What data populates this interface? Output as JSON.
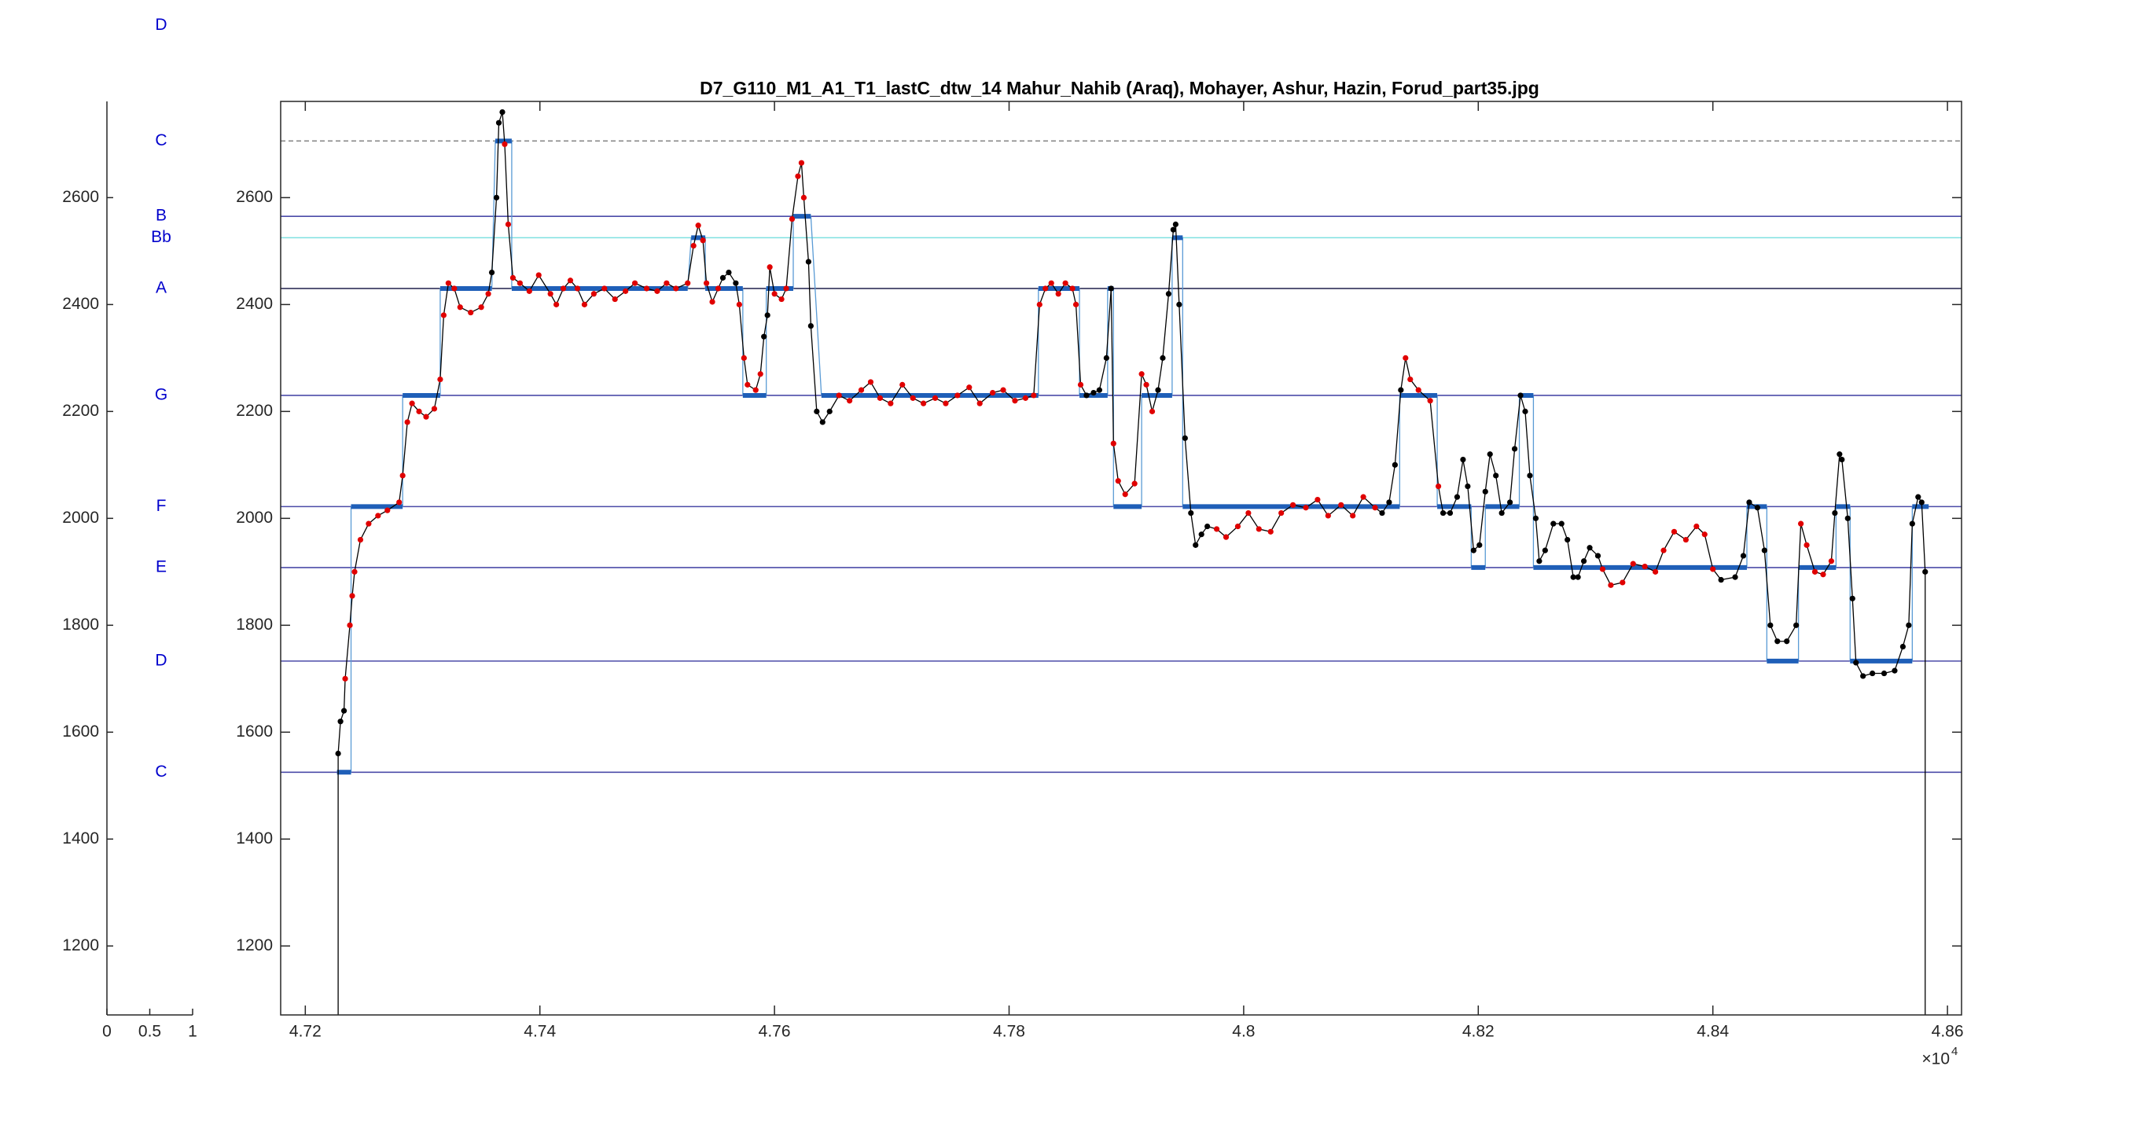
{
  "chart_data": {
    "type": "line",
    "title": "D7_G110_M1_A1_T1_lastC_dtw_14 Mahur_Nahib (Araq), Mohayer, Ashur, Hazin, Forud_part35.jpg",
    "xlim": [
      4.7179,
      4.8612
    ],
    "xticks": [
      4.72,
      4.74,
      4.76,
      4.78,
      4.8,
      4.82,
      4.84,
      4.86
    ],
    "x_exponent": {
      "base": "×10",
      "power": "4"
    },
    "ylim": [
      1071,
      2780
    ],
    "yticks": [
      1200,
      1400,
      1600,
      1800,
      2000,
      2200,
      2400,
      2600
    ],
    "note_axis": {
      "xlim": [
        0,
        1
      ],
      "xticks": [
        0,
        0.5,
        1
      ]
    },
    "notes": [
      {
        "label": "D",
        "value": 2922,
        "color": "#4b4ba8"
      },
      {
        "label": "C",
        "value": 2706,
        "color": "#8a8a8a",
        "line_style": "dashed"
      },
      {
        "label": "B",
        "value": 2565,
        "color": "#4b4ba8"
      },
      {
        "label": "Bb",
        "value": 2525,
        "color": "#7fe0e0"
      },
      {
        "label": "A",
        "value": 2430,
        "color": "#30305a"
      },
      {
        "label": "G",
        "value": 2230,
        "color": "#4b4ba8"
      },
      {
        "label": "F",
        "value": 2022,
        "color": "#4b4ba8"
      },
      {
        "label": "E",
        "value": 1908,
        "color": "#4b4ba8"
      },
      {
        "label": "D",
        "value": 1733,
        "color": "#4b4ba8"
      },
      {
        "label": "C",
        "value": 1525,
        "color": "#4b4ba8"
      }
    ],
    "steps": {
      "color": "#1f5fb8",
      "x0": [
        4.7227,
        4.7239,
        4.7283,
        4.7315,
        4.7362,
        4.7376,
        4.7529,
        4.7541,
        4.7573,
        4.7593,
        4.7616,
        4.764,
        4.7825,
        4.786,
        4.7884,
        4.7889,
        4.7913,
        4.7939,
        4.7948,
        4.8133,
        4.8165,
        4.8194,
        4.8206,
        4.8235,
        4.8247,
        4.8429,
        4.8446,
        4.8473,
        4.8505,
        4.8517,
        4.857
      ],
      "x1": [
        4.7239,
        4.7283,
        4.7315,
        4.7359,
        4.7376,
        4.7526,
        4.7541,
        4.7573,
        4.7593,
        4.7616,
        4.7631,
        4.7825,
        4.786,
        4.7884,
        4.7889,
        4.7913,
        4.7939,
        4.7948,
        4.8133,
        4.8165,
        4.8194,
        4.8206,
        4.8235,
        4.8247,
        4.8429,
        4.8446,
        4.8473,
        4.8505,
        4.8517,
        4.857,
        4.8584
      ],
      "values": [
        1525,
        2022,
        2230,
        2430,
        2706,
        2430,
        2525,
        2430,
        2230,
        2430,
        2565,
        2230,
        2430,
        2230,
        2430,
        2022,
        2230,
        2525,
        2022,
        2230,
        2022,
        1908,
        2022,
        2230,
        1908,
        2022,
        1733,
        1908,
        2022,
        1733,
        2022
      ]
    },
    "pitch": [
      {
        "color": "#000000",
        "x": [
          4.7228,
          4.723,
          4.7233
        ],
        "values": [
          1560,
          1620,
          1640
        ]
      },
      {
        "color": "#e00000",
        "x": [
          4.7234,
          4.7238,
          4.724,
          4.7242,
          4.7247,
          4.7254,
          4.7262,
          4.727,
          4.728,
          4.7283,
          4.7287,
          4.7291,
          4.7297,
          4.7303,
          4.731,
          4.7315,
          4.7318,
          4.7322,
          4.7327,
          4.7332,
          4.7341,
          4.735,
          4.7356
        ],
        "values": [
          1700,
          1800,
          1855,
          1900,
          1960,
          1990,
          2005,
          2015,
          2030,
          2080,
          2180,
          2215,
          2200,
          2190,
          2205,
          2260,
          2380,
          2440,
          2430,
          2395,
          2385,
          2395,
          2420
        ]
      },
      {
        "color": "#000000",
        "x": [
          4.7359,
          4.7363,
          4.7365,
          4.7368
        ],
        "values": [
          2460,
          2600,
          2740,
          2760
        ]
      },
      {
        "color": "#e00000",
        "x": [
          4.737,
          4.7373,
          4.7377,
          4.7383,
          4.7391,
          4.7399,
          4.7409,
          4.7414,
          4.742,
          4.7426,
          4.7432,
          4.7438,
          4.7446,
          4.7455,
          4.7464,
          4.7473,
          4.7481,
          4.7491,
          4.75,
          4.7508,
          4.7516,
          4.7526,
          4.7531,
          4.7535,
          4.7539,
          4.7542,
          4.7547,
          4.7552
        ],
        "values": [
          2700,
          2550,
          2450,
          2440,
          2425,
          2455,
          2420,
          2400,
          2430,
          2445,
          2430,
          2400,
          2420,
          2430,
          2410,
          2425,
          2440,
          2430,
          2425,
          2440,
          2430,
          2440,
          2510,
          2548,
          2520,
          2440,
          2405,
          2430
        ]
      },
      {
        "color": "#000000",
        "x": [
          4.7556,
          4.7561,
          4.7567
        ],
        "values": [
          2450,
          2460,
          2440
        ]
      },
      {
        "color": "#e00000",
        "x": [
          4.757,
          4.7574,
          4.7577,
          4.7584,
          4.7588
        ],
        "values": [
          2400,
          2300,
          2250,
          2240,
          2270
        ]
      },
      {
        "color": "#000000",
        "x": [
          4.7591,
          4.7594
        ],
        "values": [
          2340,
          2380
        ]
      },
      {
        "color": "#e00000",
        "x": [
          4.7596,
          4.76,
          4.7606,
          4.761,
          4.7615,
          4.762,
          4.7623,
          4.7625
        ],
        "values": [
          2470,
          2420,
          2410,
          2430,
          2560,
          2640,
          2665,
          2600
        ]
      },
      {
        "color": "#000000",
        "x": [
          4.7629,
          4.7631,
          4.7636,
          4.7641,
          4.7647
        ],
        "values": [
          2480,
          2360,
          2200,
          2180,
          2200
        ]
      },
      {
        "color": "#e00000",
        "x": [
          4.7655,
          4.7664,
          4.7674,
          4.7682,
          4.769,
          4.7699,
          4.7709,
          4.7718,
          4.7727,
          4.7737,
          4.7746,
          4.7756,
          4.7766,
          4.7775,
          4.7786,
          4.7795,
          4.7805,
          4.7814,
          4.7821,
          4.7826,
          4.7831,
          4.7836,
          4.7842,
          4.7848,
          4.7854,
          4.7857,
          4.7861
        ],
        "values": [
          2230,
          2220,
          2240,
          2255,
          2225,
          2215,
          2250,
          2225,
          2215,
          2225,
          2215,
          2230,
          2245,
          2215,
          2235,
          2240,
          2220,
          2225,
          2230,
          2400,
          2430,
          2440,
          2420,
          2440,
          2430,
          2400,
          2250
        ]
      },
      {
        "color": "#000000",
        "x": [
          4.7866,
          4.7872,
          4.7877,
          4.7883,
          4.7887
        ],
        "values": [
          2230,
          2235,
          2240,
          2300,
          2430
        ]
      },
      {
        "color": "#e00000",
        "x": [
          4.7889,
          4.7893,
          4.7899,
          4.7907,
          4.7913,
          4.7917,
          4.7922
        ],
        "values": [
          2140,
          2070,
          2045,
          2065,
          2270,
          2250,
          2200
        ]
      },
      {
        "color": "#000000",
        "x": [
          4.7927,
          4.7931,
          4.7936,
          4.794,
          4.7942,
          4.7945,
          4.795,
          4.7955,
          4.7959,
          4.7964,
          4.7969
        ],
        "values": [
          2240,
          2300,
          2420,
          2540,
          2550,
          2400,
          2150,
          2010,
          1950,
          1970,
          1985
        ]
      },
      {
        "color": "#e00000",
        "x": [
          4.7977,
          4.7985,
          4.7995,
          4.8004,
          4.8013,
          4.8023,
          4.8032,
          4.8042,
          4.8053,
          4.8063,
          4.8072,
          4.8083,
          4.8093,
          4.8102,
          4.8112
        ],
        "values": [
          1980,
          1965,
          1985,
          2010,
          1980,
          1975,
          2010,
          2025,
          2020,
          2035,
          2005,
          2025,
          2005,
          2040,
          2020
        ]
      },
      {
        "color": "#000000",
        "x": [
          4.8118,
          4.8124,
          4.8129,
          4.8134
        ],
        "values": [
          2010,
          2030,
          2100,
          2240
        ]
      },
      {
        "color": "#e00000",
        "x": [
          4.8138,
          4.8142,
          4.8149,
          4.8159,
          4.8166
        ],
        "values": [
          2300,
          2260,
          2240,
          2220,
          2060
        ]
      },
      {
        "color": "#000000",
        "x": [
          4.817,
          4.8176,
          4.8182,
          4.8187,
          4.8191,
          4.8196,
          4.8201,
          4.8206,
          4.821,
          4.8215,
          4.822,
          4.8227,
          4.8231,
          4.8236,
          4.824,
          4.8244,
          4.8249,
          4.8252,
          4.8257,
          4.8264,
          4.8271,
          4.8276,
          4.8281,
          4.8285,
          4.829,
          4.8295,
          4.8302
        ],
        "values": [
          2010,
          2010,
          2040,
          2110,
          2060,
          1940,
          1950,
          2050,
          2120,
          2080,
          2010,
          2030,
          2130,
          2230,
          2200,
          2080,
          2000,
          1920,
          1940,
          1990,
          1990,
          1960,
          1890,
          1890,
          1920,
          1945,
          1930
        ]
      },
      {
        "color": "#e00000",
        "x": [
          4.8306,
          4.8313,
          4.8323,
          4.8332,
          4.8342,
          4.8351,
          4.8358,
          4.8367,
          4.8377,
          4.8386,
          4.8393,
          4.84
        ],
        "values": [
          1905,
          1875,
          1880,
          1915,
          1910,
          1900,
          1940,
          1975,
          1960,
          1985,
          1970,
          1905
        ]
      },
      {
        "color": "#000000",
        "x": [
          4.8407,
          4.8419,
          4.8426,
          4.8431,
          4.8438,
          4.8444,
          4.8449,
          4.8455,
          4.8463,
          4.8471
        ],
        "values": [
          1885,
          1890,
          1930,
          2030,
          2020,
          1940,
          1800,
          1770,
          1770,
          1800
        ]
      },
      {
        "color": "#e00000",
        "x": [
          4.8475,
          4.848,
          4.8487,
          4.8494,
          4.8501
        ],
        "values": [
          1990,
          1950,
          1900,
          1895,
          1920
        ]
      },
      {
        "color": "#000000",
        "x": [
          4.8504,
          4.8508,
          4.851,
          4.8515,
          4.8519,
          4.8522,
          4.8528,
          4.8536,
          4.8546,
          4.8555,
          4.8562,
          4.8567,
          4.857,
          4.8575,
          4.8578,
          4.8581
        ],
        "values": [
          2010,
          2120,
          2110,
          2000,
          1850,
          1730,
          1705,
          1710,
          1710,
          1715,
          1760,
          1800,
          1990,
          2040,
          2030,
          1900
        ]
      }
    ]
  }
}
